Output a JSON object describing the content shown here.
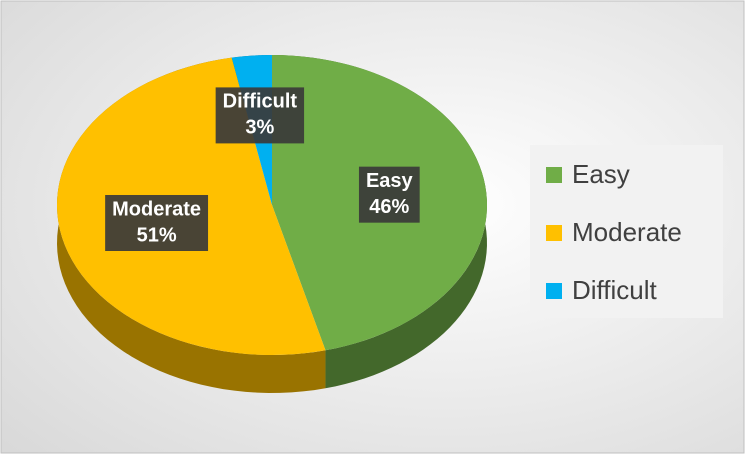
{
  "chart_data": {
    "type": "pie",
    "categories": [
      "Easy",
      "Moderate",
      "Difficult"
    ],
    "values": [
      46,
      51,
      3
    ],
    "value_labels": [
      "46%",
      "51%",
      "3%"
    ],
    "colors": [
      "#70ad47",
      "#ffc000",
      "#00b0f0"
    ],
    "legend": "right"
  }
}
